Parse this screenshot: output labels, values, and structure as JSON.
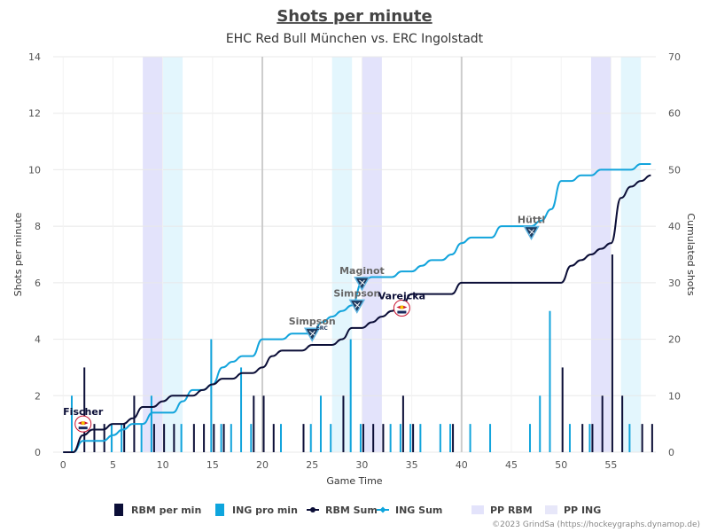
{
  "chart_data": {
    "type": "bar+line",
    "title": "Shots per minute",
    "subtitle": "EHC Red Bull München vs. ERC Ingolstadt",
    "xlabel": "Game Time",
    "ylabel_left": "Shots per minute",
    "ylabel_right": "Cumulated shots",
    "xlim": [
      -1,
      59.5
    ],
    "ylim_left": [
      0,
      14
    ],
    "ylim_right": [
      0,
      70
    ],
    "x_ticks": [
      0,
      5,
      10,
      15,
      20,
      25,
      30,
      35,
      40,
      45,
      50,
      55
    ],
    "y_left_ticks": [
      0,
      2,
      4,
      6,
      8,
      10,
      12,
      14
    ],
    "y_right_ticks": [
      0,
      10,
      20,
      30,
      40,
      50,
      60,
      70
    ],
    "period_lines": [
      20,
      40
    ],
    "grid": true,
    "legend_position": "bottom",
    "legend": [
      {
        "label": "RBM per min",
        "kind": "bar",
        "color": "#0b0e37"
      },
      {
        "label": "ING pro min",
        "kind": "bar",
        "color": "#0ea5dd"
      },
      {
        "label": "RBM Sum",
        "kind": "line-dot",
        "color": "#0b0e37"
      },
      {
        "label": "ING Sum",
        "kind": "line-diamond",
        "color": "#0ea5dd"
      },
      {
        "label": "PP RBM",
        "kind": "patch",
        "color": "#e3e3fb"
      },
      {
        "label": "PP ING",
        "kind": "patch",
        "color": "#e7e7f9"
      }
    ],
    "rbm_color": "#0b0e37",
    "ing_color": "#12a4dc",
    "powerplays_rbm": [
      [
        8,
        10
      ],
      [
        30,
        32
      ],
      [
        53,
        55
      ]
    ],
    "powerplays_ing": [
      [
        10,
        12
      ],
      [
        27,
        29
      ],
      [
        56,
        58
      ]
    ],
    "series": [
      {
        "name": "RBM per min",
        "bars": [
          [
            2,
            3
          ],
          [
            3,
            1
          ],
          [
            4,
            1
          ],
          [
            6,
            1
          ],
          [
            7,
            2
          ],
          [
            9,
            1
          ],
          [
            10,
            1
          ],
          [
            11,
            1
          ],
          [
            13,
            1
          ],
          [
            14,
            1
          ],
          [
            15,
            1
          ],
          [
            16,
            1
          ],
          [
            19,
            2
          ],
          [
            20,
            2
          ],
          [
            21,
            1
          ],
          [
            24,
            1
          ],
          [
            28,
            2
          ],
          [
            30,
            1
          ],
          [
            31,
            1
          ],
          [
            32,
            1
          ],
          [
            34,
            2
          ],
          [
            35,
            1
          ],
          [
            39,
            1
          ],
          [
            50,
            3
          ],
          [
            52,
            1
          ],
          [
            53,
            1
          ],
          [
            54,
            2
          ],
          [
            55,
            7
          ],
          [
            56,
            2
          ],
          [
            58,
            1
          ],
          [
            59,
            1
          ]
        ]
      },
      {
        "name": "ING pro min",
        "bars": [
          [
            1,
            2
          ],
          [
            5,
            1
          ],
          [
            6,
            1
          ],
          [
            8,
            1
          ],
          [
            9,
            2
          ],
          [
            12,
            1
          ],
          [
            15,
            4
          ],
          [
            16,
            1
          ],
          [
            17,
            1
          ],
          [
            18,
            3
          ],
          [
            19,
            1
          ],
          [
            22,
            1
          ],
          [
            25,
            1
          ],
          [
            26,
            2
          ],
          [
            27,
            1
          ],
          [
            29,
            4
          ],
          [
            30,
            1
          ],
          [
            33,
            1
          ],
          [
            34,
            1
          ],
          [
            35,
            1
          ],
          [
            36,
            1
          ],
          [
            38,
            1
          ],
          [
            39,
            1
          ],
          [
            41,
            1
          ],
          [
            43,
            1
          ],
          [
            47,
            1
          ],
          [
            48,
            2
          ],
          [
            49,
            5
          ],
          [
            51,
            1
          ],
          [
            53,
            1
          ],
          [
            57,
            1
          ]
        ]
      },
      {
        "name": "RBM Sum",
        "points": [
          [
            0,
            0
          ],
          [
            1,
            0
          ],
          [
            2,
            3
          ],
          [
            3,
            4
          ],
          [
            4,
            4
          ],
          [
            5,
            5
          ],
          [
            6,
            5
          ],
          [
            7,
            6
          ],
          [
            8,
            8
          ],
          [
            9,
            8
          ],
          [
            10,
            9
          ],
          [
            11,
            10
          ],
          [
            12,
            10
          ],
          [
            13,
            10
          ],
          [
            14,
            11
          ],
          [
            15,
            12
          ],
          [
            16,
            13
          ],
          [
            17,
            13
          ],
          [
            18,
            14
          ],
          [
            19,
            14
          ],
          [
            20,
            15
          ],
          [
            21,
            17
          ],
          [
            22,
            18
          ],
          [
            23,
            18
          ],
          [
            24,
            18
          ],
          [
            25,
            19
          ],
          [
            26,
            19
          ],
          [
            27,
            19
          ],
          [
            28,
            20
          ],
          [
            29,
            22
          ],
          [
            30,
            22
          ],
          [
            31,
            23
          ],
          [
            32,
            24
          ],
          [
            33,
            25
          ],
          [
            34,
            26
          ],
          [
            35,
            28
          ],
          [
            36,
            28
          ],
          [
            37,
            28
          ],
          [
            38,
            28
          ],
          [
            39,
            28
          ],
          [
            40,
            30
          ],
          [
            41,
            30
          ],
          [
            42,
            30
          ],
          [
            43,
            30
          ],
          [
            44,
            30
          ],
          [
            45,
            30
          ],
          [
            46,
            30
          ],
          [
            47,
            30
          ],
          [
            48,
            30
          ],
          [
            49,
            30
          ],
          [
            50,
            30
          ],
          [
            51,
            33
          ],
          [
            52,
            34
          ],
          [
            53,
            35
          ],
          [
            54,
            36
          ],
          [
            55,
            37
          ],
          [
            56,
            45
          ],
          [
            57,
            47
          ],
          [
            58,
            48
          ],
          [
            59,
            49
          ]
        ]
      },
      {
        "name": "ING Sum",
        "points": [
          [
            0,
            0
          ],
          [
            1,
            0
          ],
          [
            2,
            2
          ],
          [
            3,
            2
          ],
          [
            4,
            2
          ],
          [
            5,
            3
          ],
          [
            6,
            4
          ],
          [
            7,
            5
          ],
          [
            8,
            5
          ],
          [
            9,
            7
          ],
          [
            10,
            7
          ],
          [
            11,
            7
          ],
          [
            12,
            9
          ],
          [
            13,
            11
          ],
          [
            14,
            11
          ],
          [
            15,
            12
          ],
          [
            16,
            15
          ],
          [
            17,
            16
          ],
          [
            18,
            17
          ],
          [
            19,
            17
          ],
          [
            20,
            20
          ],
          [
            21,
            20
          ],
          [
            22,
            20
          ],
          [
            23,
            21
          ],
          [
            24,
            21
          ],
          [
            25,
            21
          ],
          [
            26,
            23
          ],
          [
            27,
            24
          ],
          [
            28,
            25
          ],
          [
            29,
            26
          ],
          [
            30,
            30
          ],
          [
            31,
            31
          ],
          [
            32,
            31
          ],
          [
            33,
            31
          ],
          [
            34,
            32
          ],
          [
            35,
            32
          ],
          [
            36,
            33
          ],
          [
            37,
            34
          ],
          [
            38,
            34
          ],
          [
            39,
            35
          ],
          [
            40,
            37
          ],
          [
            41,
            38
          ],
          [
            42,
            38
          ],
          [
            43,
            38
          ],
          [
            44,
            40
          ],
          [
            45,
            40
          ],
          [
            46,
            40
          ],
          [
            47,
            40
          ],
          [
            48,
            41
          ],
          [
            49,
            43
          ],
          [
            50,
            48
          ],
          [
            51,
            48
          ],
          [
            52,
            49
          ],
          [
            53,
            49
          ],
          [
            54,
            50
          ],
          [
            55,
            50
          ],
          [
            56,
            50
          ],
          [
            57,
            50
          ],
          [
            58,
            51
          ],
          [
            59,
            51
          ]
        ]
      }
    ],
    "annotations": [
      {
        "text": "Fischer",
        "x": 2,
        "y": 1,
        "team": "rbm"
      },
      {
        "text": "Simpson",
        "x": 25,
        "y": 4.2,
        "team": "ing"
      },
      {
        "text": "Simpson",
        "x": 29.5,
        "y": 5.2,
        "team": "ing"
      },
      {
        "text": "Maginot",
        "x": 30,
        "y": 6,
        "team": "ing"
      },
      {
        "text": "Varejcka",
        "x": 34,
        "y": 5.1,
        "team": "rbm"
      },
      {
        "text": "Hüttl",
        "x": 47,
        "y": 7.8,
        "team": "ing"
      }
    ],
    "logo_text": "ERC"
  },
  "credit": "©2023 GrindSa (https://hockeygraphs.dynamop.de)"
}
